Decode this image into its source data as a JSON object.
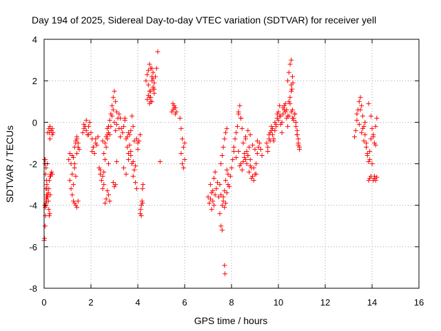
{
  "chart_data": {
    "type": "scatter",
    "title": "Day 194 of 2025, Sidereal Day-to-day VTEC variation (SDTVAR) for receiver yell",
    "xlabel": "GPS time / hours",
    "ylabel": "SDTVAR / TECUs",
    "xlim": [
      0,
      16
    ],
    "ylim": [
      -8,
      4
    ],
    "xticks": [
      "0",
      "2",
      "4",
      "6",
      "8",
      "10",
      "12",
      "14",
      "16"
    ],
    "yticks": [
      "-8",
      "-6",
      "-4",
      "-2",
      "0",
      "2",
      "4"
    ],
    "grid": true,
    "marker": "+",
    "color": "#ff0000",
    "series": [
      {
        "name": "SDTVAR",
        "x": [
          0.0,
          0.02,
          0.04,
          0.06,
          0.08,
          0.1,
          0.12,
          0.14,
          0.05,
          0.08,
          0.1,
          0.12,
          0.15,
          0.18,
          0.2,
          0.22,
          0.24,
          0.26,
          0.28,
          0.3,
          0.32,
          0.35,
          0.15,
          0.2,
          0.25,
          0.3,
          0.35,
          0.22,
          0.25,
          0.3,
          0.35,
          0.38,
          0.02,
          0.04,
          0.06,
          0.08,
          0.1,
          0.03,
          0.05,
          0.07,
          0.09,
          0.12,
          0.15,
          0.18,
          0.2,
          0.22,
          0.25,
          0.28,
          1.05,
          1.1,
          1.15,
          1.2,
          1.25,
          1.3,
          1.35,
          1.4,
          1.1,
          1.15,
          1.2,
          1.25,
          1.3,
          1.35,
          1.4,
          1.45,
          1.2,
          1.25,
          1.3,
          1.35,
          1.4,
          1.45,
          1.3,
          1.35,
          1.4,
          1.45,
          1.5,
          1.65,
          1.7,
          1.75,
          1.8,
          1.85,
          1.9,
          1.95,
          2.0,
          2.05,
          2.1,
          2.15,
          2.2,
          2.25,
          2.3,
          1.7,
          1.8,
          1.9,
          2.05,
          2.1,
          2.2,
          2.35,
          2.4,
          2.45,
          2.5,
          2.55,
          2.6,
          2.65,
          2.7,
          2.75,
          2.4,
          2.5,
          2.55,
          2.6,
          2.65,
          2.7,
          2.75,
          2.8,
          2.6,
          2.65,
          2.7,
          2.75,
          2.5,
          2.55,
          2.7,
          2.75,
          2.8,
          2.85,
          2.9,
          2.95,
          3.0,
          3.05,
          3.1,
          3.15,
          3.2,
          3.25,
          2.8,
          2.85,
          2.9,
          2.95,
          3.0,
          3.05,
          3.1,
          2.95,
          3.0,
          3.05,
          3.1,
          3.2,
          3.25,
          3.3,
          3.35,
          3.4,
          3.45,
          3.5,
          3.55,
          3.6,
          3.65,
          3.7,
          3.75,
          3.8,
          3.85,
          3.4,
          3.5,
          3.6,
          3.7,
          3.8,
          3.9,
          3.95,
          4.0,
          3.45,
          3.55,
          3.65,
          3.75,
          3.85,
          3.95,
          3.6,
          3.7,
          3.8,
          3.9,
          4.0,
          4.05,
          4.1,
          4.1,
          4.12,
          4.15,
          4.18,
          4.2,
          4.22,
          4.15,
          4.2,
          4.35,
          4.4,
          4.45,
          4.5,
          4.55,
          4.6,
          4.65,
          4.7,
          4.75,
          4.4,
          4.45,
          4.5,
          4.55,
          4.6,
          4.65,
          4.7,
          4.45,
          4.5,
          4.55,
          4.6,
          4.65,
          4.5,
          4.55,
          4.6,
          4.65,
          4.7,
          4.8,
          4.85,
          4.95,
          5.45,
          5.5,
          5.55,
          5.6,
          5.65,
          5.5,
          5.55,
          5.6,
          5.8,
          5.85,
          5.9,
          5.95,
          6.0,
          5.85,
          5.9,
          5.95,
          6.0,
          7.0,
          7.05,
          7.1,
          7.15,
          7.2,
          7.25,
          7.3,
          7.1,
          7.15,
          7.2,
          7.25,
          7.3,
          7.35,
          7.4,
          7.45,
          7.5,
          7.55,
          7.6,
          7.65,
          7.7,
          7.75,
          7.8,
          7.85,
          7.9,
          7.55,
          7.6,
          7.65,
          7.7,
          7.75,
          7.8,
          7.5,
          7.55,
          7.7,
          7.72,
          7.6,
          7.65,
          7.7,
          7.75,
          7.8,
          7.85,
          7.95,
          8.0,
          8.05,
          8.1,
          8.1,
          8.15,
          8.2,
          8.25,
          8.3,
          8.35,
          8.4,
          8.45,
          8.5,
          8.55,
          8.6,
          8.65,
          8.7,
          8.75,
          8.8,
          8.85,
          8.9,
          8.95,
          9.0,
          9.05,
          9.1,
          9.15,
          9.2,
          9.25,
          9.3,
          8.2,
          8.3,
          8.4,
          8.5,
          8.6,
          8.7,
          8.8,
          8.9,
          9.0,
          9.1,
          8.35,
          8.45,
          8.55,
          8.65,
          8.75,
          8.85,
          8.95,
          9.05,
          8.3,
          8.4,
          8.6,
          8.7,
          8.8,
          9.5,
          9.55,
          9.6,
          9.65,
          9.7,
          9.75,
          9.8,
          9.85,
          9.9,
          9.95,
          10.0,
          10.05,
          10.1,
          10.15,
          10.2,
          10.25,
          10.3,
          10.35,
          10.4,
          10.45,
          10.5,
          10.55,
          10.6,
          10.65,
          10.7,
          10.75,
          10.8,
          10.85,
          10.9,
          9.6,
          9.7,
          9.8,
          9.9,
          10.0,
          10.1,
          10.2,
          10.3,
          10.4,
          10.5,
          10.6,
          10.7,
          10.8,
          9.55,
          9.65,
          9.75,
          9.85,
          9.95,
          10.05,
          10.15,
          10.25,
          10.35,
          10.45,
          10.55,
          10.65,
          10.75,
          10.85,
          10.4,
          10.45,
          10.5,
          10.55,
          10.6,
          10.55,
          10.58,
          10.62,
          10.8,
          10.85,
          10.9,
          13.25,
          13.3,
          13.35,
          13.4,
          13.45,
          13.5,
          13.55,
          13.6,
          13.65,
          13.7,
          13.75,
          13.8,
          13.85,
          13.9,
          13.95,
          14.0,
          14.05,
          14.1,
          14.15,
          14.2,
          13.35,
          13.45,
          13.55,
          13.65,
          13.75,
          13.85,
          13.95,
          14.05,
          14.15,
          13.5,
          13.6,
          13.7,
          13.8,
          13.9,
          14.0,
          14.1,
          13.85,
          13.9,
          13.95,
          14.05,
          14.1,
          14.15,
          14.2
        ],
        "y": [
          -5.7,
          -5.6,
          -5.0,
          -4.5,
          -4.0,
          -3.5,
          -3.0,
          -2.0,
          -1.8,
          -2.2,
          -2.8,
          -3.2,
          -3.6,
          -3.8,
          -4.2,
          -4.5,
          -4.4,
          -3.5,
          -2.6,
          -2.5,
          -2.4,
          -2.5,
          -0.5,
          -0.3,
          -0.2,
          -0.4,
          -0.6,
          -0.5,
          -0.8,
          -0.4,
          -0.3,
          -0.5,
          -1.8,
          -2.0,
          -2.5,
          -3.2,
          -3.8,
          -4.0,
          -4.1,
          -3.9,
          -3.7,
          -3.6,
          -3.5,
          -3.4,
          -3.2,
          -2.8,
          -2.6,
          -2.5,
          -1.8,
          -1.5,
          -2.0,
          -2.5,
          -3.0,
          -1.2,
          -1.0,
          -0.8,
          -2.8,
          -3.2,
          -3.5,
          -3.8,
          -3.9,
          -4.0,
          -4.1,
          -3.8,
          -1.6,
          -1.7,
          -2.2,
          -2.6,
          -1.5,
          -1.2,
          -2.0,
          -0.9,
          -0.7,
          -1.0,
          -1.3,
          -0.5,
          -0.3,
          -0.2,
          -0.4,
          -0.6,
          -0.2,
          0.0,
          -0.5,
          -0.8,
          -1.2,
          -1.5,
          -1.0,
          -1.1,
          -0.7,
          -0.1,
          0.1,
          -0.6,
          -1.4,
          -1.2,
          -0.8,
          -2.2,
          -2.5,
          -2.8,
          -3.2,
          -3.0,
          -1.8,
          -1.2,
          -0.8,
          -0.5,
          -2.3,
          -0.9,
          -1.5,
          -1.0,
          -0.7,
          -0.6,
          -3.5,
          -3.8,
          -3.9,
          -3.7,
          -3.3,
          -2.0,
          -2.6,
          -2.4,
          -0.3,
          -0.2,
          0.1,
          0.4,
          0.8,
          1.2,
          1.5,
          1.0,
          0.5,
          0.2,
          -0.3,
          -0.7,
          -0.6,
          -0.2,
          0.3,
          0.6,
          0.0,
          -0.4,
          -0.1,
          -2.9,
          -3.1,
          -3.0,
          -1.9,
          0.4,
          0.2,
          -0.3,
          -0.5,
          -0.2,
          0.1,
          -0.8,
          -1.2,
          -1.5,
          -0.6,
          -0.4,
          0.3,
          -0.2,
          -0.9,
          -2.2,
          -2.5,
          -1.8,
          -1.4,
          -2.6,
          -2.9,
          -3.2,
          -1.0,
          0.2,
          -0.7,
          -1.1,
          -2.0,
          -2.3,
          -0.8,
          -0.5,
          -1.6,
          -1.9,
          -2.1,
          -1.3,
          -0.9,
          -0.6,
          -4.4,
          -4.2,
          -4.0,
          -3.8,
          -3.2,
          -3.0,
          -4.5,
          -3.9,
          2.0,
          2.3,
          1.8,
          1.5,
          1.2,
          1.0,
          1.6,
          1.9,
          2.2,
          1.1,
          2.5,
          2.8,
          2.6,
          2.2,
          1.7,
          1.4,
          1.3,
          0.9,
          1.5,
          2.0,
          2.4,
          1.2,
          1.0,
          2.6,
          2.1,
          1.6,
          2.6,
          3.4,
          -1.9,
          0.5,
          0.6,
          0.8,
          0.7,
          0.5,
          0.9,
          0.7,
          0.4,
          0.2,
          -0.3,
          -0.8,
          -1.2,
          -1.8,
          -1.5,
          -2.0,
          -2.2,
          -1.0,
          -3.6,
          -3.9,
          -3.7,
          -4.2,
          -3.3,
          -2.7,
          -2.4,
          -3.0,
          -3.4,
          -3.8,
          -4.0,
          -3.5,
          -3.2,
          -2.9,
          -3.6,
          -4.4,
          -5.0,
          -5.2,
          -3.8,
          -3.3,
          -2.8,
          -2.3,
          -2.5,
          -3.1,
          -2.0,
          -1.6,
          -1.2,
          -0.8,
          -0.5,
          -0.3,
          -3.0,
          -3.5,
          -6.9,
          -7.3,
          -4.0,
          -3.6,
          -4.1,
          -3.9,
          -3.4,
          -3.0,
          -2.6,
          -2.2,
          -1.8,
          -1.4,
          -1.2,
          -0.8,
          -0.5,
          -0.2,
          0.4,
          0.8,
          0.2,
          -0.3,
          -1.0,
          -1.5,
          -1.8,
          -2.0,
          -1.6,
          -1.2,
          -1.8,
          -2.2,
          -2.6,
          -2.8,
          -2.5,
          -2.0,
          -1.5,
          -1.2,
          -1.0,
          -1.3,
          -1.6,
          -1.7,
          -1.4,
          -2.0,
          -1.9,
          -0.7,
          -0.4,
          -0.6,
          -1.1,
          -1.3,
          -0.9,
          -2.1,
          -2.3,
          -1.7,
          -1.4,
          -2.4,
          -2.7,
          -2.2,
          -2.5,
          0.5,
          0.2,
          -0.8,
          -1.6,
          -2.1,
          -1.0,
          -1.2,
          -0.8,
          -0.5,
          -0.2,
          -0.6,
          -0.9,
          -0.4,
          -0.1,
          0.2,
          0.5,
          0.8,
          0.3,
          0.0,
          0.4,
          0.6,
          0.9,
          0.2,
          -0.2,
          0.3,
          1.2,
          1.5,
          0.6,
          0.1,
          0.4,
          -0.2,
          -0.6,
          -1.0,
          -1.2,
          -0.6,
          -0.4,
          -0.8,
          -0.2,
          0.1,
          -0.1,
          0.7,
          0.5,
          0.3,
          0.9,
          0.2,
          0.4,
          -0.4,
          -1.4,
          -0.9,
          -0.3,
          0.0,
          0.4,
          0.3,
          -0.5,
          0.8,
          0.6,
          1.0,
          0.5,
          0.2,
          0.0,
          -0.8,
          2.0,
          2.4,
          2.8,
          3.0,
          2.2,
          1.8,
          1.6,
          1.9,
          -0.6,
          -1.1,
          -1.3,
          -0.7,
          -0.4,
          0.1,
          0.6,
          1.0,
          1.2,
          0.8,
          0.3,
          -0.2,
          -0.6,
          -1.0,
          -1.5,
          -1.9,
          -1.4,
          -0.8,
          -0.3,
          -0.6,
          -1.0,
          -0.2,
          0.2,
          0.4,
          -0.1,
          -0.5,
          -0.9,
          -1.2,
          0.9,
          0.3,
          -0.7,
          -1.1,
          0.6,
          -0.3,
          0.0,
          -1.6,
          -1.8,
          -2.0,
          -2.6,
          -2.8,
          -2.7,
          -2.6,
          -2.8,
          -2.7,
          -2.8,
          -2.65
        ]
      }
    ]
  }
}
